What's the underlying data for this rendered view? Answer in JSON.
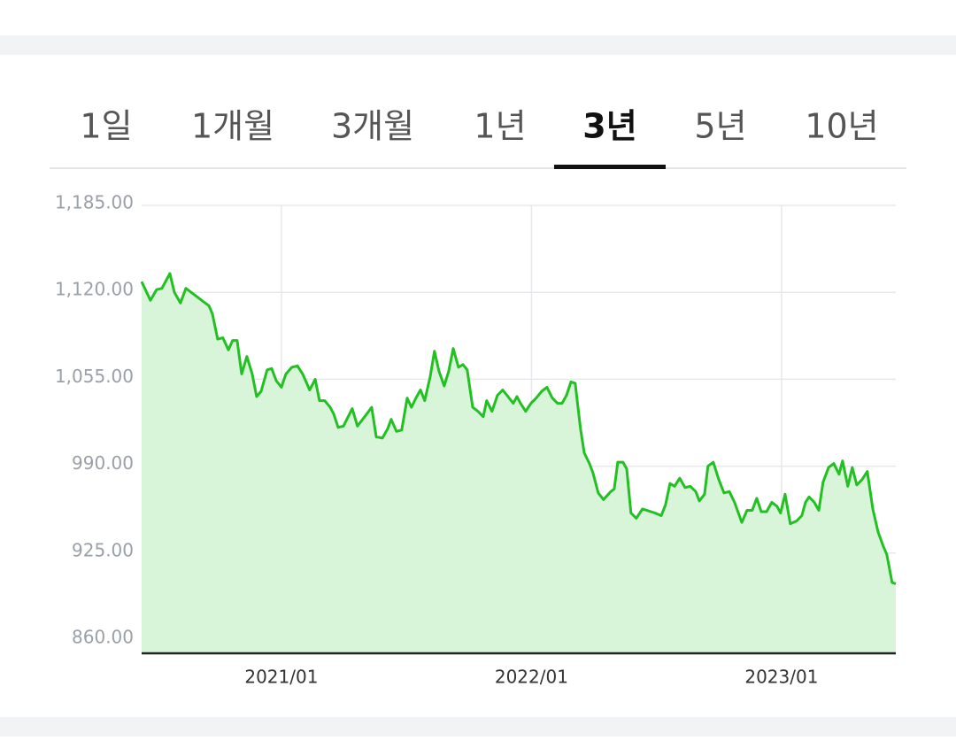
{
  "tabs": {
    "items": [
      "1일",
      "1개월",
      "3개월",
      "1년",
      "3년",
      "5년",
      "10년"
    ],
    "selected": 4
  },
  "chart_data": {
    "type": "line",
    "x": [
      2020.441,
      2020.476,
      2020.501,
      2020.522,
      2020.554,
      2020.572,
      2020.596,
      2020.618,
      2020.653,
      2020.688,
      2020.71,
      2020.724,
      2020.745,
      2020.766,
      2020.788,
      2020.805,
      2020.823,
      2020.841,
      2020.862,
      2020.883,
      2020.901,
      2020.919,
      2020.943,
      2020.961,
      2020.979,
      2021.0,
      2021.018,
      2021.042,
      2021.064,
      2021.085,
      2021.113,
      2021.135,
      2021.152,
      2021.173,
      2021.195,
      2021.209,
      2021.227,
      2021.248,
      2021.283,
      2021.304,
      2021.333,
      2021.361,
      2021.379,
      2021.404,
      2021.425,
      2021.439,
      2021.46,
      2021.481,
      2021.503,
      2021.52,
      2021.538,
      2021.556,
      2021.573,
      2021.595,
      2021.612,
      2021.63,
      2021.651,
      2021.669,
      2021.687,
      2021.708,
      2021.726,
      2021.743,
      2021.765,
      2021.786,
      2021.807,
      2021.821,
      2021.842,
      2021.864,
      2021.885,
      2021.906,
      2021.927,
      2021.942,
      2021.956,
      2021.977,
      2021.998,
      2022.019,
      2022.041,
      2022.062,
      2022.083,
      2022.104,
      2022.122,
      2022.14,
      2022.158,
      2022.175,
      2022.196,
      2022.211,
      2022.232,
      2022.246,
      2022.267,
      2022.288,
      2022.317,
      2022.331,
      2022.345,
      2022.366,
      2022.381,
      2022.398,
      2022.419,
      2022.444,
      2022.494,
      2022.519,
      2022.536,
      2022.554,
      2022.572,
      2022.593,
      2022.614,
      2022.635,
      2022.657,
      2022.671,
      2022.692,
      2022.706,
      2022.727,
      2022.749,
      2022.77,
      2022.791,
      2022.812,
      2022.841,
      2022.862,
      2022.883,
      2022.901,
      2022.919,
      2022.94,
      2022.961,
      2022.982,
      2022.996,
      2023.014,
      2023.035,
      2023.06,
      2023.081,
      2023.096,
      2023.11,
      2023.131,
      2023.149,
      2023.166,
      2023.188,
      2023.209,
      2023.23,
      2023.244,
      2023.265,
      2023.283,
      2023.301,
      2023.322,
      2023.343,
      2023.365,
      2023.386,
      2023.407,
      2023.421,
      2023.442,
      2023.457
    ],
    "series": [
      {
        "color": "#22c022",
        "fill": "#d9f5d9",
        "values": [
          1128,
          1114,
          1122,
          1123,
          1134,
          1120,
          1112,
          1123,
          1118,
          1113,
          1110,
          1104,
          1085,
          1086,
          1077,
          1084,
          1084,
          1059,
          1072,
          1059,
          1042,
          1046,
          1062,
          1063,
          1054,
          1049,
          1059,
          1064,
          1065,
          1059,
          1047,
          1055,
          1039,
          1039,
          1034,
          1029,
          1019,
          1020,
          1033,
          1020,
          1027,
          1034,
          1012,
          1011,
          1018,
          1025,
          1016,
          1017,
          1041,
          1034,
          1041,
          1047,
          1039,
          1057,
          1076,
          1061,
          1050,
          1061,
          1078,
          1064,
          1066,
          1062,
          1034,
          1031,
          1027,
          1039,
          1031,
          1043,
          1047,
          1042,
          1037,
          1042,
          1037,
          1031,
          1037,
          1041,
          1046,
          1049,
          1041,
          1037,
          1037,
          1043,
          1053,
          1052,
          1018,
          1000,
          992,
          985,
          970,
          965,
          971,
          973,
          993,
          993,
          988,
          955,
          951,
          958,
          955,
          953,
          961,
          977,
          975,
          981,
          974,
          975,
          971,
          964,
          969,
          990,
          993,
          980,
          970,
          971,
          963,
          948,
          957,
          957,
          966,
          956,
          956,
          963,
          960,
          955,
          969,
          947,
          949,
          953,
          963,
          967,
          963,
          957,
          978,
          989,
          992,
          984,
          994,
          975,
          989,
          976,
          980,
          986,
          958,
          941,
          930,
          924,
          903,
          902
        ]
      }
    ],
    "xlim": [
      2020.441,
      2023.457
    ],
    "xticks": [
      {
        "value": 2021,
        "label": "2021/01"
      },
      {
        "value": 2022,
        "label": "2022/01"
      },
      {
        "value": 2023,
        "label": "2023/01"
      }
    ],
    "ylim": [
      860,
      1185
    ],
    "yticks": [
      {
        "value": 860,
        "label": "860.00"
      },
      {
        "value": 925,
        "label": "925.00"
      },
      {
        "value": 990,
        "label": "990.00"
      },
      {
        "value": 1055,
        "label": "1,055.00"
      },
      {
        "value": 1120,
        "label": "1,120.00"
      },
      {
        "value": 1185,
        "label": "1,185.00"
      }
    ],
    "grid": true
  }
}
